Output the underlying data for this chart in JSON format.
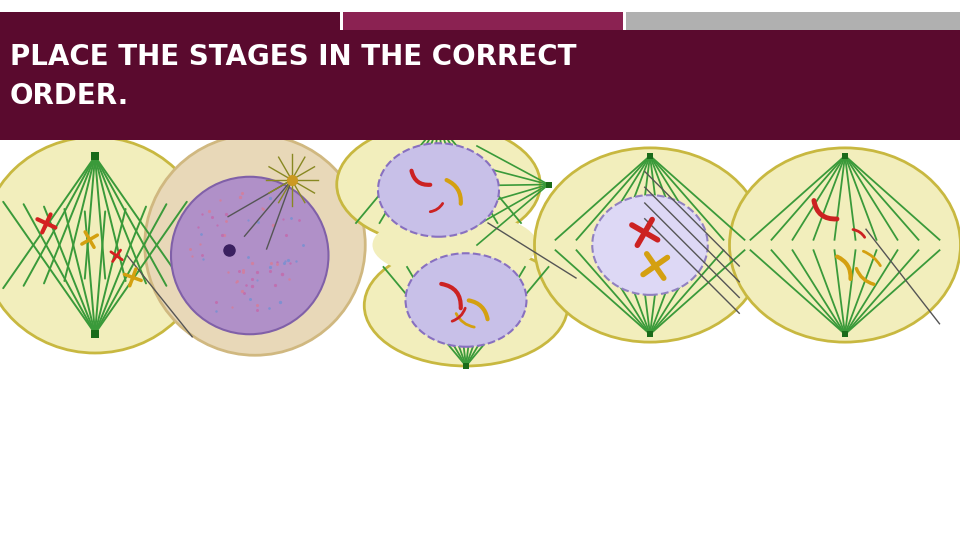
{
  "title_text": "PLACE THE STAGES IN THE CORRECT\nORDER.",
  "bg_color": "#ffffff",
  "header_bg": "#5a0a2e",
  "header_bar_colors": [
    "#5a0a2e",
    "#8b2252",
    "#aaaaaa"
  ],
  "header_text_color": "#ffffff",
  "figure_size": [
    9.6,
    5.4
  ],
  "dpi": 100
}
